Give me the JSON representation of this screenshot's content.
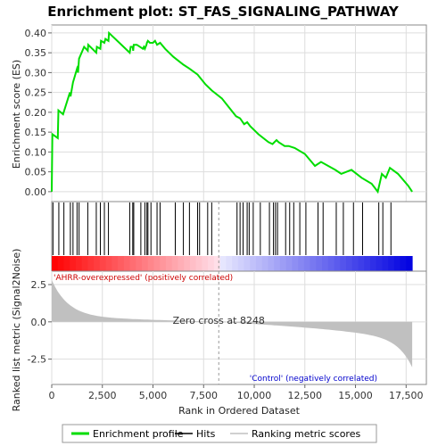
{
  "chart_data": {
    "type": "line",
    "title": "Enrichment plot: ST_FAS_SIGNALING_PATHWAY",
    "xlabel": "Rank in Ordered Dataset",
    "ylabel_top": "Enrichment score (ES)",
    "ylabel_bottom": "Ranked list metric (Signal2Noise)",
    "x_ticks": [
      "0",
      "2,500",
      "5,000",
      "7,500",
      "10,000",
      "12,500",
      "15,000",
      "17,500"
    ],
    "x_tick_values": [
      0,
      2500,
      5000,
      7500,
      10000,
      12500,
      15000,
      17500
    ],
    "xlim": [
      0,
      18500
    ],
    "es_ylim": [
      -0.025,
      0.42
    ],
    "es_y_ticks": [
      "0.00",
      "0.05",
      "0.10",
      "0.15",
      "0.20",
      "0.25",
      "0.30",
      "0.35",
      "0.40"
    ],
    "es_y_tick_values": [
      0.0,
      0.05,
      0.1,
      0.15,
      0.2,
      0.25,
      0.3,
      0.35,
      0.4
    ],
    "metric_ylim": [
      -4.2,
      3.4
    ],
    "metric_y_ticks": [
      "2.5",
      "0.0",
      "-2.5"
    ],
    "metric_y_tick_values": [
      2.5,
      0.0,
      -2.5
    ],
    "series": [
      {
        "name": "Enrichment profile",
        "color": "#00dd00",
        "x": [
          0,
          30,
          300,
          330,
          560,
          900,
          930,
          1050,
          1250,
          1300,
          1350,
          1600,
          1780,
          1800,
          2200,
          2230,
          2400,
          2430,
          2600,
          2650,
          2800,
          2830,
          3750,
          3850,
          3900,
          4000,
          4020,
          4050,
          4200,
          4500,
          4550,
          4600,
          4680,
          4700,
          4750,
          4850,
          5000,
          5100,
          5200,
          5350,
          5600,
          6000,
          6500,
          6800,
          7200,
          7600,
          7900,
          8400,
          9100,
          9300,
          9500,
          9650,
          9800,
          10200,
          10700,
          10900,
          11000,
          11100,
          11200,
          11500,
          11700,
          12000,
          12500,
          13000,
          13300,
          14000,
          14300,
          14800,
          15300,
          15800,
          16100,
          16300,
          16500,
          16700,
          17100,
          17600,
          17800
        ],
        "y": [
          0.0,
          0.145,
          0.135,
          0.205,
          0.195,
          0.25,
          0.24,
          0.275,
          0.31,
          0.3,
          0.335,
          0.365,
          0.355,
          0.37,
          0.35,
          0.365,
          0.36,
          0.38,
          0.375,
          0.385,
          0.38,
          0.4,
          0.355,
          0.35,
          0.365,
          0.365,
          0.355,
          0.37,
          0.37,
          0.36,
          0.365,
          0.36,
          0.37,
          0.375,
          0.38,
          0.375,
          0.375,
          0.38,
          0.37,
          0.375,
          0.36,
          0.34,
          0.32,
          0.31,
          0.295,
          0.27,
          0.255,
          0.235,
          0.19,
          0.185,
          0.17,
          0.175,
          0.165,
          0.145,
          0.125,
          0.12,
          0.125,
          0.13,
          0.125,
          0.115,
          0.115,
          0.11,
          0.095,
          0.065,
          0.075,
          0.055,
          0.045,
          0.055,
          0.035,
          0.02,
          0.0,
          0.045,
          0.035,
          0.06,
          0.045,
          0.015,
          0.0
        ]
      }
    ],
    "hits": [
      60,
      350,
      600,
      920,
      1050,
      1250,
      1350,
      1780,
      2200,
      2400,
      2600,
      2800,
      3850,
      4000,
      4050,
      4400,
      4600,
      4700,
      4750,
      4900,
      5200,
      5350,
      6100,
      6500,
      6800,
      7200,
      7300,
      7700,
      7900,
      9150,
      9300,
      9450,
      9650,
      9750,
      9950,
      10300,
      10750,
      10950,
      11050,
      11150,
      11550,
      11750,
      11950,
      12250,
      12550,
      13150,
      13400,
      14050,
      14400,
      14900,
      15350,
      16150,
      16350,
      16750
    ],
    "zero_cross_rank": 8248,
    "zero_cross_label": "Zero cross at 8248",
    "pos_label": "'AHRR-overexpressed' (positively correlated)",
    "neg_label": "'Control' (negatively correlated)",
    "metric_start": 2.8,
    "metric_end": -4.0,
    "legend": [
      {
        "label": "Enrichment profile",
        "color": "#00dd00",
        "kind": "line"
      },
      {
        "label": "Hits",
        "color": "#000000",
        "kind": "line"
      },
      {
        "label": "Ranking metric scores",
        "color": "#c0c0c0",
        "kind": "line"
      }
    ],
    "colors": {
      "pos_text": "#cc0000",
      "neg_text": "#0000cc",
      "metric_fill": "#c0c0c0",
      "grid": "#dddddd"
    }
  }
}
